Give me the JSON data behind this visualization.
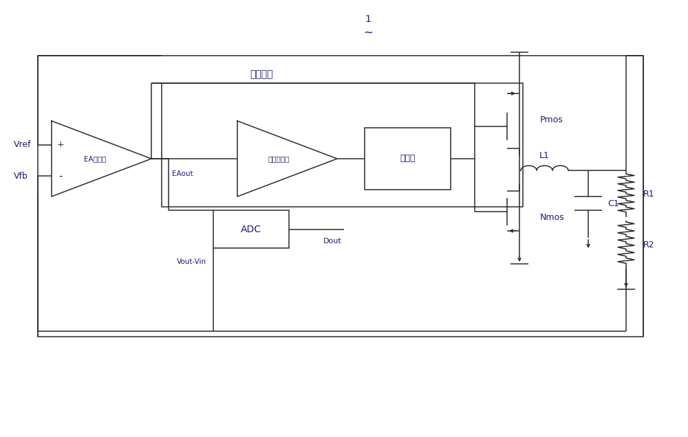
{
  "bg_color": "#ffffff",
  "lc": "#2a2a2a",
  "tc": "#1a1a6e",
  "fig_width": 10.0,
  "fig_height": 6.36,
  "sampling_label": "采样电流",
  "ea_label": "EA放大器",
  "comp_label": "电压比较器",
  "driver_label": "驱动器",
  "adc_label": "ADC",
  "pmos_label": "Pmos",
  "nmos_label": "Nmos",
  "l1_label": "L1",
  "c1_label": "C1",
  "r1_label": "R1",
  "r2_label": "R2",
  "vref_label": "Vref",
  "vfb_label": "Vfb",
  "eaout_label": "EAout",
  "vout_vin_label": "Vout-Vin",
  "dout_label": "Dout",
  "title_num": "1",
  "title_wavy": "~",
  "plus_sign": "+",
  "minus_sign": "-"
}
